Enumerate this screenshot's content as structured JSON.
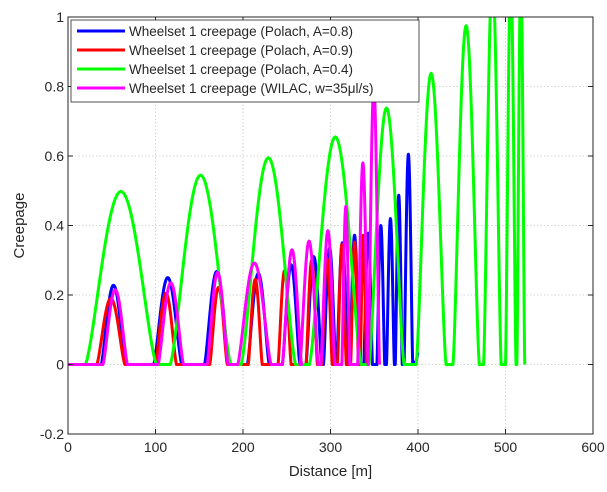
{
  "chart_data": {
    "type": "line",
    "title": "",
    "xlabel": "Distance [m]",
    "ylabel": "Creepage",
    "xlim": [
      0,
      600
    ],
    "ylim": [
      -0.2,
      1
    ],
    "xticks": [
      0,
      100,
      200,
      300,
      400,
      500,
      600
    ],
    "xtick_labels": [
      "0",
      "100",
      "200",
      "300",
      "400",
      "500",
      "600"
    ],
    "yticks": [
      -0.2,
      0,
      0.2,
      0.4,
      0.6,
      0.8,
      1
    ],
    "ytick_labels": [
      "-0.2",
      "0",
      "0.2",
      "0.4",
      "0.6",
      "0.8",
      "1"
    ],
    "grid": true,
    "grid_style": "dotted",
    "legend_position": "top-left",
    "series": [
      {
        "name": "Wheelset 1 creepage (Polach, A=0.8)",
        "color": "#0000ff",
        "humps": [
          [
            38,
            66,
            0.228
          ],
          [
            98,
            130,
            0.25
          ],
          [
            156,
            184,
            0.268
          ],
          [
            205,
            230,
            0.262
          ],
          [
            245,
            265,
            0.287
          ],
          [
            272,
            290,
            0.31
          ],
          [
            292,
            306,
            0.335
          ],
          [
            307,
            320,
            0.35
          ],
          [
            322,
            333,
            0.372
          ],
          [
            338,
            348,
            0.378
          ],
          [
            353,
            362,
            0.4
          ],
          [
            364,
            373,
            0.42
          ],
          [
            374,
            382,
            0.487
          ],
          [
            384,
            394,
            0.605
          ]
        ],
        "tail": [
          [
            394,
            0
          ],
          [
            398,
            0.01
          ],
          [
            400,
            0.035
          ]
        ]
      },
      {
        "name": "Wheelset 1 creepage (Polach, A=0.9)",
        "color": "#ff0000",
        "humps": [
          [
            33,
            65,
            0.19
          ],
          [
            100,
            124,
            0.205
          ],
          [
            162,
            182,
            0.222
          ],
          [
            206,
            222,
            0.245
          ],
          [
            240,
            255,
            0.27
          ],
          [
            272,
            285,
            0.3
          ],
          [
            290,
            302,
            0.305
          ],
          [
            308,
            318,
            0.345
          ],
          [
            323,
            332,
            0.352
          ],
          [
            334,
            341,
            0.372
          ]
        ],
        "tail": []
      },
      {
        "name": "Wheelset 1 creepage (Polach, A=0.4)",
        "color": "#00ff00",
        "humps": [
          [
            20,
            101,
            0.498
          ],
          [
            117,
            186,
            0.545
          ],
          [
            198,
            260,
            0.595
          ],
          [
            276,
            335,
            0.655
          ],
          [
            344,
            384,
            0.738
          ],
          [
            398,
            432,
            0.838
          ],
          [
            440,
            470,
            0.975
          ],
          [
            475,
            495,
            1.12
          ],
          [
            500,
            512,
            1.12
          ],
          [
            513,
            522,
            1.12
          ]
        ],
        "tail": []
      },
      {
        "name": "Wheelset 1 creepage (WILAC, w=35μl/s)",
        "color": "#ff00ff",
        "humps": [
          [
            40,
            68,
            0.215
          ],
          [
            103,
            132,
            0.235
          ],
          [
            159,
            183,
            0.265
          ],
          [
            194,
            232,
            0.292
          ],
          [
            245,
            267,
            0.33
          ],
          [
            265,
            286,
            0.355
          ],
          [
            289,
            305,
            0.385
          ],
          [
            313,
            322,
            0.455
          ],
          [
            331,
            343,
            0.58
          ],
          [
            343,
            356,
            0.8
          ]
        ],
        "tail": []
      }
    ]
  }
}
